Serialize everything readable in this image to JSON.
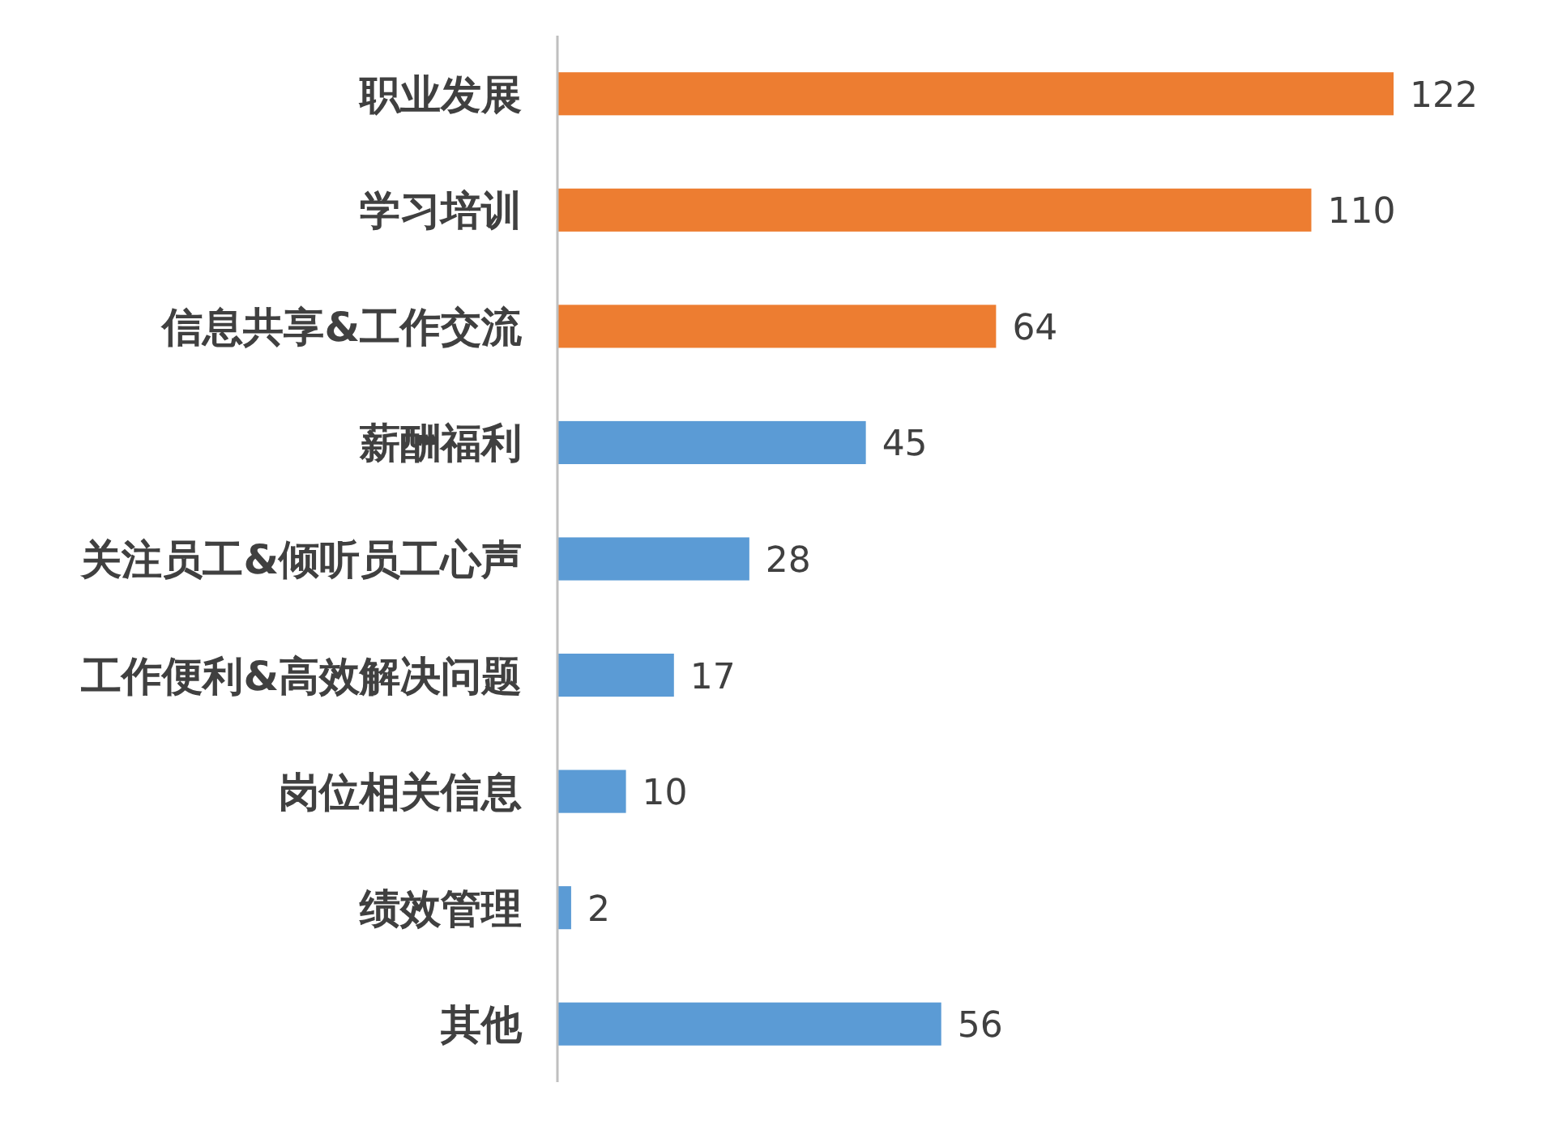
{
  "chart_data": {
    "type": "bar",
    "orientation": "horizontal",
    "data_labels": true,
    "categories": [
      "职业发展",
      "学习培训",
      "信息共享&工作交流",
      "薪酬福利",
      "关注员工&倾听员工心声",
      "工作便利&高效解决问题",
      "岗位相关信息",
      "绩效管理",
      "其他"
    ],
    "values": [
      122,
      110,
      64,
      45,
      28,
      17,
      10,
      2,
      56
    ],
    "colors": [
      "#ed7d31",
      "#ed7d31",
      "#ed7d31",
      "#5b9bd5",
      "#5b9bd5",
      "#5b9bd5",
      "#5b9bd5",
      "#5b9bd5",
      "#5b9bd5"
    ]
  }
}
